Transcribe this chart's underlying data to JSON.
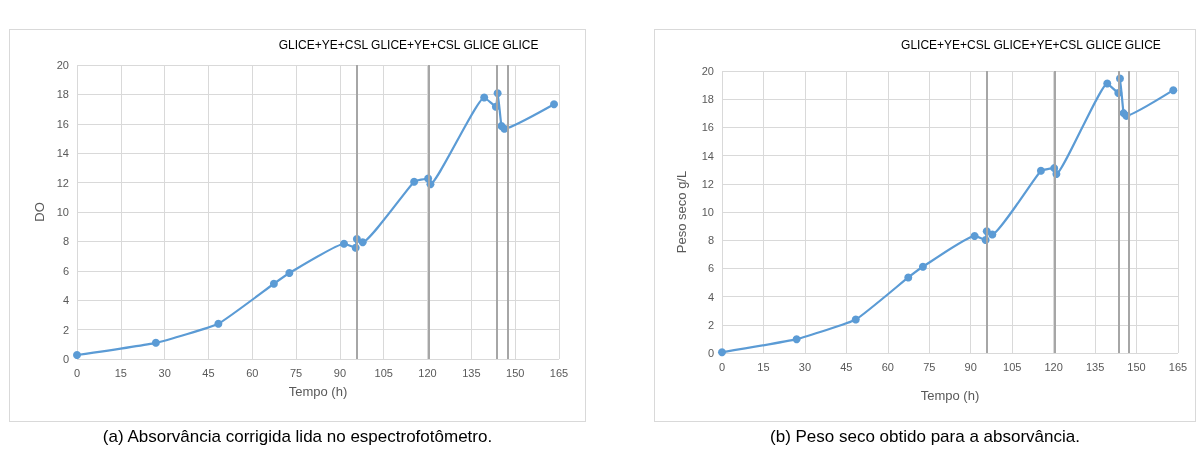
{
  "chart_data": [
    {
      "type": "line",
      "xlabel": "Tempo (h)",
      "ylabel": "DO",
      "annotations": [
        "(a) Absorvância corrigida lida no espectrofotômetro."
      ],
      "x": [
        0,
        27,
        48.4,
        67.4,
        72.7,
        91.4,
        95.4,
        95.8,
        97.8,
        115.4,
        120.2,
        121,
        139.4,
        143.4,
        144,
        145.3,
        146.3,
        163.3
      ],
      "series": [
        {
          "color": "#5b9bd5",
          "values": [
            0.27,
            1.1,
            2.4,
            5.12,
            5.85,
            7.84,
            7.57,
            8.16,
            7.94,
            12.06,
            12.28,
            11.89,
            17.79,
            17.16,
            18.08,
            15.85,
            15.66,
            17.33
          ]
        }
      ],
      "xlim": [
        0,
        165
      ],
      "xticks": [
        0,
        15,
        30,
        45,
        60,
        75,
        90,
        105,
        120,
        135,
        150,
        165
      ],
      "ylim": [
        0,
        20
      ],
      "yticks": [
        0,
        2,
        4,
        6,
        8,
        10,
        12,
        14,
        16,
        18,
        20
      ],
      "ref_lines": [
        {
          "axis": "x",
          "value": 95.7,
          "label": "GLICE+YE+CSL",
          "color": "#a6a6a6"
        },
        {
          "axis": "x",
          "value": 120.3,
          "label": "GLICE+YE+CSL",
          "color": "#a6a6a6"
        },
        {
          "axis": "x",
          "value": 143.6,
          "label": "GLICE",
          "color": "#a6a6a6"
        },
        {
          "axis": "x",
          "value": 147.3,
          "label": "GLICE",
          "color": "#a6a6a6"
        }
      ],
      "grid": true,
      "marker": "circle"
    },
    {
      "type": "line",
      "xlabel": "Tempo (h)",
      "ylabel": "Peso seco g/L",
      "annotations": [
        "(b) Peso seco obtido para a absorvância."
      ],
      "x": [
        0,
        27,
        48.4,
        67.4,
        72.7,
        91.4,
        95.4,
        95.8,
        97.8,
        115.4,
        120.2,
        121,
        139.4,
        143.4,
        144,
        145.3,
        146.3,
        163.3
      ],
      "series": [
        {
          "color": "#5b9bd5",
          "values": [
            0.05,
            0.98,
            2.37,
            5.36,
            6.12,
            8.3,
            8.01,
            8.64,
            8.4,
            12.92,
            13.11,
            12.7,
            19.11,
            18.44,
            19.47,
            17.01,
            16.82,
            18.64
          ]
        }
      ],
      "xlim": [
        0,
        165
      ],
      "xticks": [
        0,
        15,
        30,
        45,
        60,
        75,
        90,
        105,
        120,
        135,
        150,
        165
      ],
      "ylim": [
        0,
        20
      ],
      "yticks": [
        0,
        2,
        4,
        6,
        8,
        10,
        12,
        14,
        16,
        18,
        20
      ],
      "ref_lines": [
        {
          "axis": "x",
          "value": 95.7,
          "label": "GLICE+YE+CSL",
          "color": "#a6a6a6"
        },
        {
          "axis": "x",
          "value": 120.3,
          "label": "GLICE+YE+CSL",
          "color": "#a6a6a6"
        },
        {
          "axis": "x",
          "value": 143.6,
          "label": "GLICE",
          "color": "#a6a6a6"
        },
        {
          "axis": "x",
          "value": 147.3,
          "label": "GLICE",
          "color": "#a6a6a6"
        }
      ],
      "grid": true,
      "marker": "circle"
    }
  ]
}
